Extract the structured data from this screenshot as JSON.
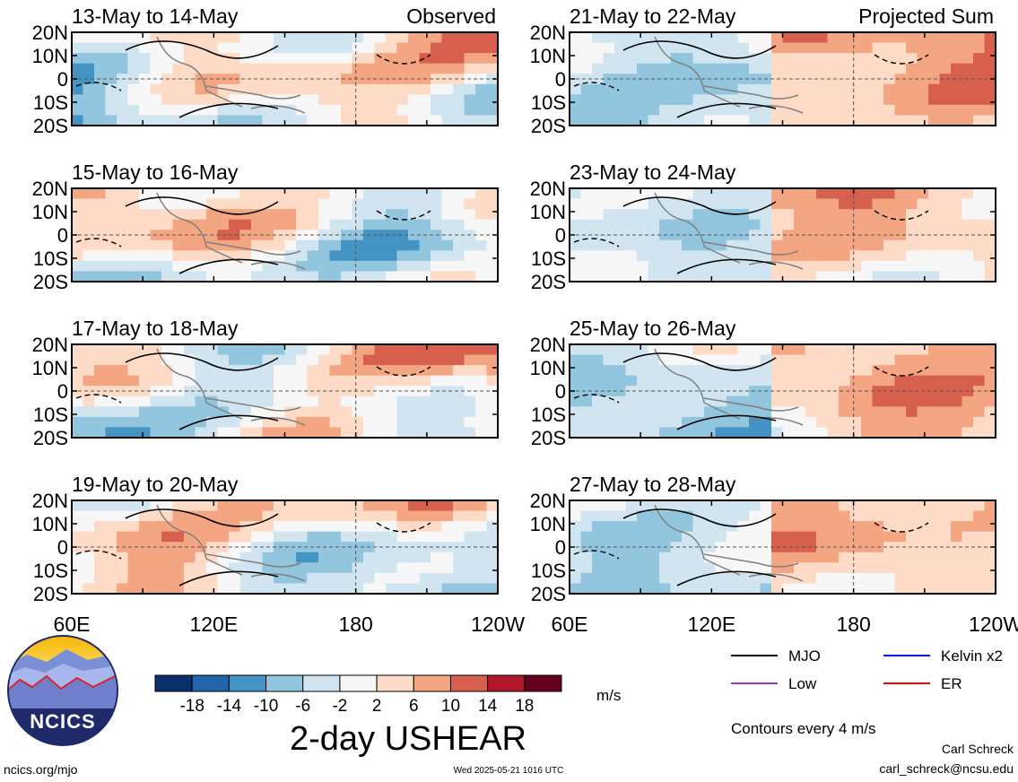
{
  "chart_data": {
    "type": "heatmap",
    "variable_title": "2-day USHEAR",
    "units": "m/s",
    "column_labels": [
      "Observed",
      "Projected Sum"
    ],
    "panels": [
      {
        "column": 0,
        "row": 0,
        "title": "13-May to 14-May"
      },
      {
        "column": 0,
        "row": 1,
        "title": "15-May to 16-May"
      },
      {
        "column": 0,
        "row": 2,
        "title": "17-May to 18-May"
      },
      {
        "column": 0,
        "row": 3,
        "title": "19-May to 20-May"
      },
      {
        "column": 1,
        "row": 0,
        "title": "21-May to 22-May"
      },
      {
        "column": 1,
        "row": 1,
        "title": "23-May to 24-May"
      },
      {
        "column": 1,
        "row": 2,
        "title": "25-May to 26-May"
      },
      {
        "column": 1,
        "row": 3,
        "title": "27-May to 28-May"
      }
    ],
    "y_tick_labels": [
      "20N",
      "10N",
      "0",
      "10S",
      "20S"
    ],
    "x_tick_labels": [
      "60E",
      "120E",
      "180",
      "120W"
    ],
    "xlim": [
      "60E",
      "120W"
    ],
    "ylim": [
      "20S",
      "20N"
    ],
    "colorbar": {
      "tick_labels": [
        "-18",
        "-14",
        "-10",
        "-6",
        "-2",
        "2",
        "6",
        "10",
        "14",
        "18"
      ],
      "colors": [
        "#08306b",
        "#2166ac",
        "#4393c3",
        "#92c5de",
        "#d1e5f0",
        "#f7f7f7",
        "#fddbc7",
        "#f4a582",
        "#d6604d",
        "#b2182b",
        "#67001f"
      ]
    },
    "contours": {
      "note": "Contours every 4 m/s",
      "legend": [
        {
          "label": "MJO",
          "color": "#000000"
        },
        {
          "label": "Kelvin x2",
          "color": "#0000ff"
        },
        {
          "label": "Low",
          "color": "#9933cc"
        },
        {
          "label": "ER",
          "color": "#ff0000"
        }
      ]
    }
  },
  "logo": {
    "text": "NCICS"
  },
  "footer": {
    "url": "ncics.org/mjo",
    "timestamp": "Wed 2025-05-21 1016 UTC",
    "author": "Carl Schreck",
    "email": "carl_schreck@ncsu.edu"
  }
}
